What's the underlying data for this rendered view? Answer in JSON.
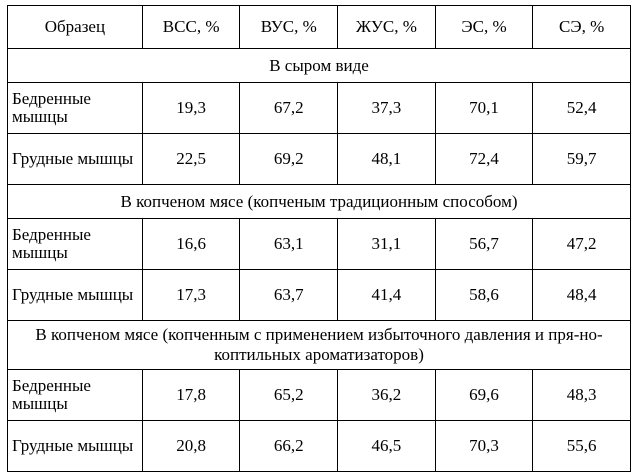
{
  "headers": [
    "Образец",
    "ВСС, %",
    "ВУС, %",
    "ЖУС, %",
    "ЭС, %",
    "СЭ, %"
  ],
  "sections": [
    {
      "title": "В сыром виде",
      "rows": [
        {
          "label": "Бедренные мышцы",
          "values": [
            "19,3",
            "67,2",
            "37,3",
            "70,1",
            "52,4"
          ]
        },
        {
          "label": "Грудные мышцы",
          "values": [
            "22,5",
            "69,2",
            "48,1",
            "72,4",
            "59,7"
          ]
        }
      ]
    },
    {
      "title": "В копченом мясе (копченым традиционным способом)",
      "rows": [
        {
          "label": "Бедренные мышцы",
          "values": [
            "16,6",
            "63,1",
            "31,1",
            "56,7",
            "47,2"
          ]
        },
        {
          "label": "Грудные мышцы",
          "values": [
            "17,3",
            "63,7",
            "41,4",
            "58,6",
            "48,4"
          ]
        }
      ]
    },
    {
      "title": "В копченом мясе (копченным с применением избыточного давления и пря-но-коптильных ароматизаторов)",
      "rows": [
        {
          "label": "Бедренные мышцы",
          "values": [
            "17,8",
            "65,2",
            "36,2",
            "69,6",
            "48,3"
          ]
        },
        {
          "label": "Грудные мышцы",
          "values": [
            "20,8",
            "66,2",
            "46,5",
            "70,3",
            "55,6"
          ]
        }
      ]
    }
  ]
}
